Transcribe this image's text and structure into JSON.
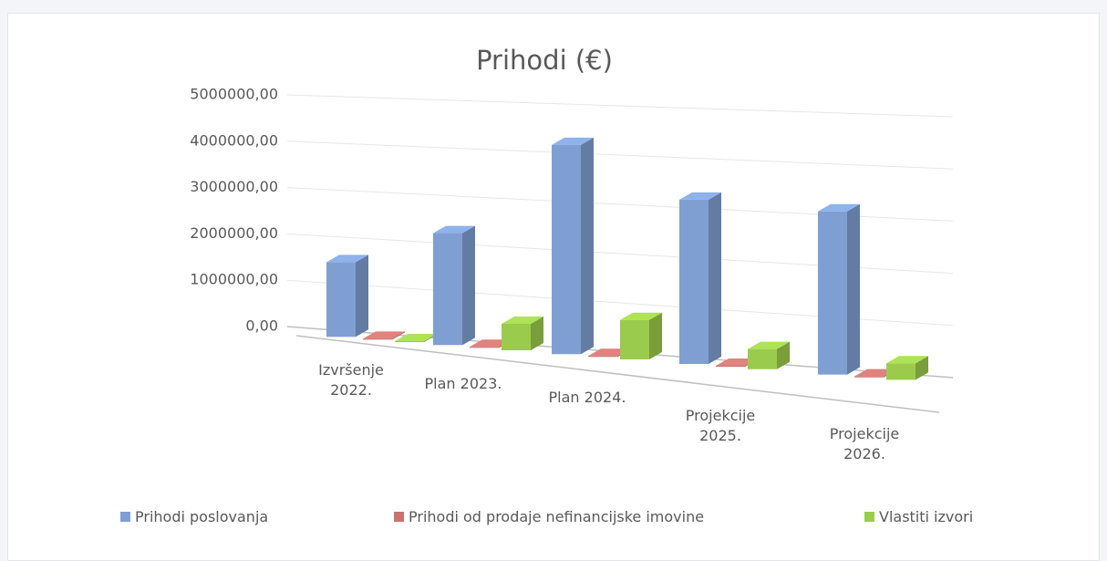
{
  "chart_data": {
    "type": "bar3d",
    "title": "Prihodi (€)",
    "categories": [
      "Izvršenje 2022.",
      "Plan 2023.",
      "Plan 2024.",
      "Projekcije 2025.",
      "Projekcije 2026."
    ],
    "series": [
      {
        "name": "Prihodi poslovanja",
        "color": "#7f9fd2",
        "values": [
          1600000,
          2350000,
          4300000,
          3300000,
          3200000
        ]
      },
      {
        "name": "Prihodi od prodaje nefinancijske imovine",
        "color": "#c87470",
        "values": [
          20000,
          20000,
          20000,
          20000,
          20000
        ]
      },
      {
        "name": "Vlastiti izvori",
        "color": "#9bcb4c",
        "values": [
          20000,
          550000,
          800000,
          400000,
          320000
        ]
      }
    ],
    "ylim": [
      0,
      5000000
    ],
    "yticks": [
      {
        "value": 0,
        "label": "0,00"
      },
      {
        "value": 1000000,
        "label": "1000000,00"
      },
      {
        "value": 2000000,
        "label": "2000000,00"
      },
      {
        "value": 3000000,
        "label": "3000000,00"
      },
      {
        "value": 4000000,
        "label": "4000000,00"
      },
      {
        "value": 5000000,
        "label": "5000000,00"
      }
    ],
    "grid": true,
    "legend": "bottom"
  }
}
